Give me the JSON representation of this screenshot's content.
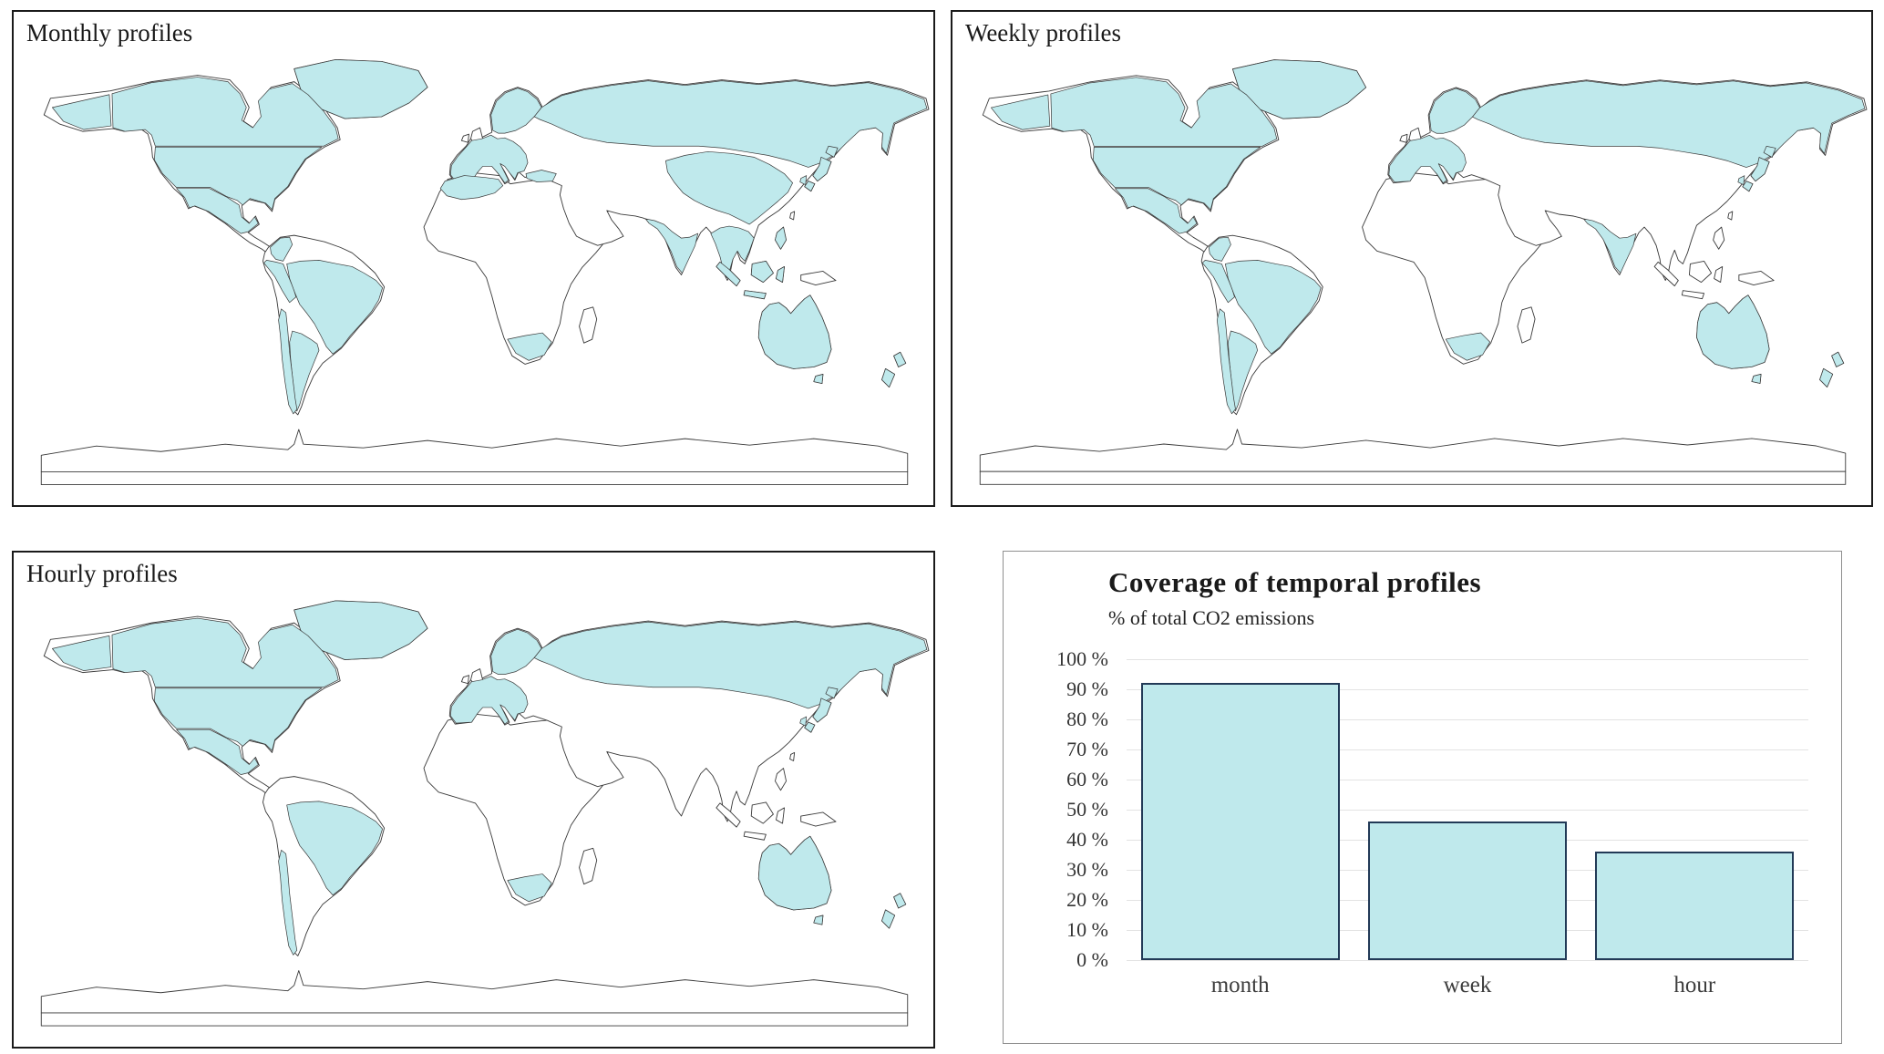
{
  "figure": {
    "highlight_color": "#bfe9ec",
    "outline_color": "#3a3a3a",
    "maps": [
      {
        "id": "monthly",
        "title": "Monthly profiles",
        "regions": [
          "greenland",
          "alaska",
          "canada",
          "usa",
          "mexico",
          "colombia",
          "peru",
          "brazil",
          "chile",
          "argentina",
          "europe",
          "scandinavia",
          "russia",
          "turkey",
          "nw-africa",
          "south-africa",
          "india",
          "china",
          "se-asia",
          "indonesia",
          "philippines",
          "japan",
          "south-korea",
          "australia",
          "new-zealand"
        ]
      },
      {
        "id": "weekly",
        "title": "Weekly profiles",
        "regions": [
          "greenland",
          "alaska",
          "canada",
          "usa",
          "mexico",
          "colombia",
          "peru",
          "brazil",
          "chile",
          "argentina",
          "europe",
          "scandinavia",
          "russia",
          "india",
          "south-africa",
          "japan",
          "south-korea",
          "australia",
          "new-zealand"
        ]
      },
      {
        "id": "hourly",
        "title": "Hourly profiles",
        "regions": [
          "greenland",
          "alaska",
          "canada",
          "usa",
          "mexico",
          "brazil",
          "chile",
          "europe",
          "scandinavia",
          "russia",
          "south-africa",
          "japan",
          "south-korea",
          "australia",
          "new-zealand"
        ]
      }
    ]
  },
  "chart_data": {
    "type": "bar",
    "title": "Coverage of temporal profiles",
    "subtitle": "% of total CO2 emissions",
    "categories": [
      "month",
      "week",
      "hour"
    ],
    "values": [
      92,
      46,
      36
    ],
    "xlabel": "",
    "ylabel": "",
    "ylim": [
      0,
      100
    ],
    "ytick_step": 10,
    "ytick_suffix": " %",
    "bar_color": "#bfe9ec",
    "bar_border": "#223a57",
    "grid": true,
    "legend": false
  }
}
